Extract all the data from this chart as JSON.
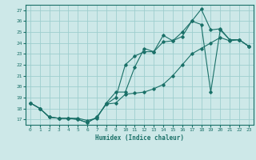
{
  "xlabel": "Humidex (Indice chaleur)",
  "background_color": "#cde8e8",
  "grid_color": "#9ecece",
  "line_color": "#1a7068",
  "xlim": [
    -0.5,
    23.5
  ],
  "ylim": [
    16.5,
    27.5
  ],
  "yticks": [
    17,
    18,
    19,
    20,
    21,
    22,
    23,
    24,
    25,
    26,
    27
  ],
  "xticks": [
    0,
    1,
    2,
    3,
    4,
    5,
    6,
    7,
    8,
    9,
    10,
    11,
    12,
    13,
    14,
    15,
    16,
    17,
    18,
    19,
    20,
    21,
    22,
    23
  ],
  "line1_x": [
    0,
    1,
    2,
    3,
    4,
    5,
    6,
    7,
    8,
    9,
    10,
    11,
    12,
    13,
    14,
    15,
    16,
    17,
    18,
    19,
    20,
    21,
    22,
    23
  ],
  "line1_y": [
    18.5,
    18.0,
    17.2,
    17.1,
    17.1,
    17.1,
    16.9,
    17.1,
    18.5,
    19.5,
    19.5,
    21.8,
    23.5,
    23.2,
    24.7,
    24.2,
    25.0,
    26.0,
    27.1,
    25.2,
    25.3,
    24.3,
    24.3,
    23.7
  ],
  "line2_x": [
    0,
    1,
    2,
    3,
    4,
    5,
    6,
    7,
    8,
    9,
    10,
    11,
    12,
    13,
    14,
    15,
    16,
    17,
    18,
    19,
    20,
    21,
    22,
    23
  ],
  "line2_y": [
    18.5,
    18.0,
    17.2,
    17.1,
    17.1,
    17.0,
    16.7,
    17.2,
    18.4,
    19.0,
    22.0,
    22.8,
    23.2,
    23.2,
    24.1,
    24.2,
    24.6,
    26.0,
    25.7,
    19.5,
    25.2,
    24.3,
    24.3,
    23.7
  ],
  "line3_x": [
    0,
    1,
    2,
    3,
    4,
    5,
    6,
    7,
    8,
    9,
    10,
    11,
    12,
    13,
    14,
    15,
    16,
    17,
    18,
    19,
    20,
    21,
    22,
    23
  ],
  "line3_y": [
    18.5,
    18.0,
    17.2,
    17.1,
    17.1,
    17.0,
    16.7,
    17.2,
    18.4,
    18.5,
    19.3,
    19.4,
    19.5,
    19.8,
    20.2,
    21.0,
    22.0,
    23.0,
    23.5,
    24.0,
    24.5,
    24.2,
    24.3,
    23.7
  ]
}
